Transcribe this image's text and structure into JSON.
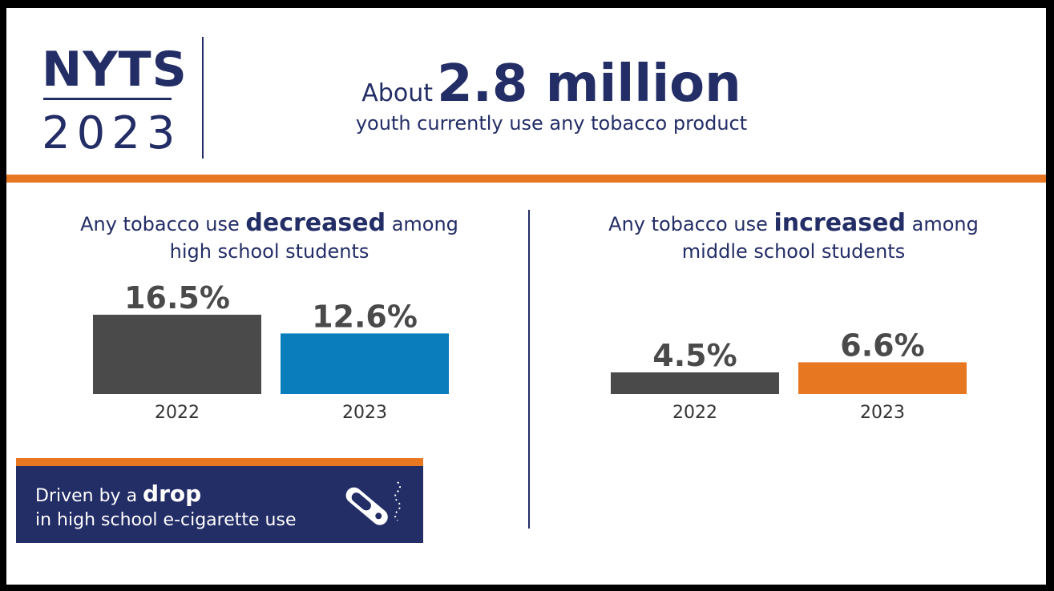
{
  "colors": {
    "navy": "#232d66",
    "orange": "#e87722",
    "gray": "#4a4a4a",
    "blue": "#0a7dbd",
    "text": "#2b2b3d"
  },
  "logo": {
    "line1": "NYTS",
    "line2": "2023"
  },
  "header": {
    "prefix": "About",
    "big": "2.8 million",
    "subtitle": "youth currently use any tobacco product"
  },
  "left_section": {
    "title_pre": "Any tobacco use ",
    "title_emph": "decreased",
    "title_post": " among",
    "title_line2": "high school students"
  },
  "right_section": {
    "title_pre": "Any tobacco use ",
    "title_emph": "increased",
    "title_post": " among",
    "title_line2": "middle school students"
  },
  "callout": {
    "pre": "Driven by a ",
    "emph": "drop",
    "line2": "in high school e-cigarette use",
    "icon": "e-cigarette-icon"
  },
  "chart_data": [
    {
      "type": "bar",
      "categories": [
        "2022",
        "2023"
      ],
      "values": [
        16.5,
        12.6
      ],
      "value_labels": [
        "16.5%",
        "12.6%"
      ],
      "colors": [
        "#4a4a4a",
        "#0a7dbd"
      ],
      "title": "Any tobacco use decreased among high school students"
    },
    {
      "type": "bar",
      "categories": [
        "2022",
        "2023"
      ],
      "values": [
        4.5,
        6.6
      ],
      "value_labels": [
        "4.5%",
        "6.6%"
      ],
      "colors": [
        "#4a4a4a",
        "#e87722"
      ],
      "title": "Any tobacco use increased among middle school students"
    }
  ]
}
